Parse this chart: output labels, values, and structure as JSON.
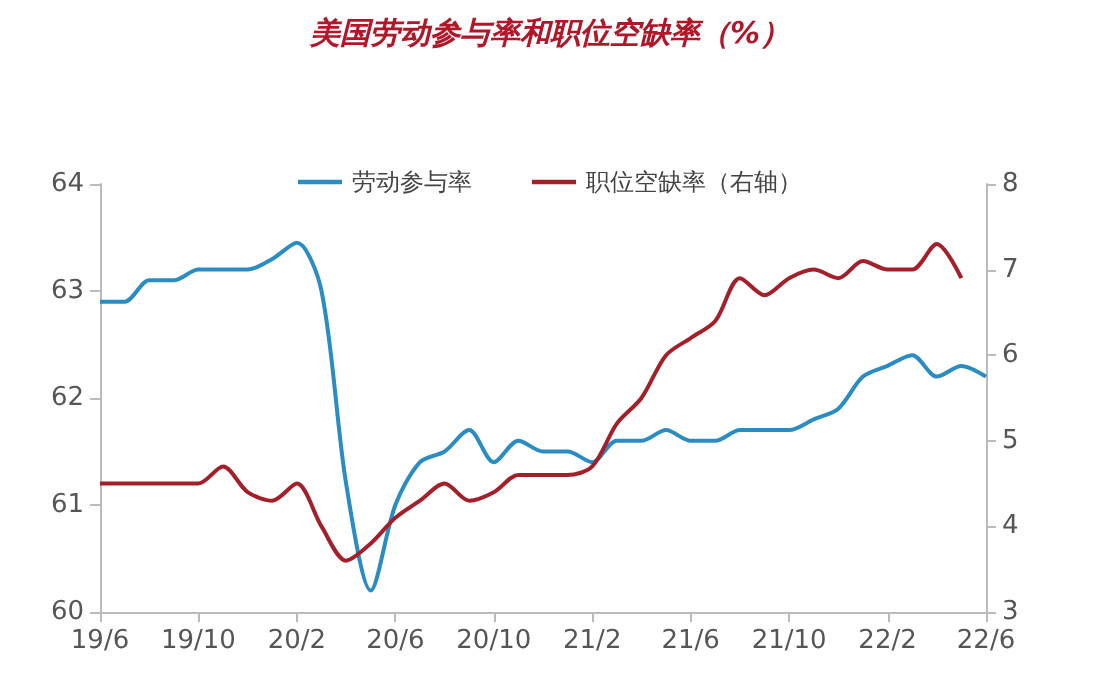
{
  "chart_data": {
    "type": "line",
    "title": "美国劳动参与率和职位空缺率（%）",
    "categories": [
      "19/6",
      null,
      null,
      null,
      "19/10",
      null,
      null,
      null,
      "20/2",
      null,
      null,
      null,
      "20/6",
      null,
      null,
      null,
      "20/10",
      null,
      null,
      null,
      "21/2",
      null,
      null,
      null,
      "21/6",
      null,
      null,
      null,
      "21/10",
      null,
      null,
      null,
      "22/2",
      null,
      null,
      null,
      "22/6"
    ],
    "series": [
      {
        "name": "劳动参与率",
        "color": "#2b8cc4",
        "values": [
          62.9,
          62.9,
          63.1,
          63.1,
          63.2,
          63.2,
          63.2,
          63.3,
          63.45,
          63.0,
          61.2,
          60.2,
          61.0,
          61.4,
          61.5,
          61.7,
          61.4,
          61.6,
          61.5,
          61.5,
          61.4,
          61.6,
          61.6,
          61.7,
          61.6,
          61.6,
          61.7,
          61.7,
          61.7,
          61.8,
          61.9,
          62.2,
          62.3,
          62.4,
          62.2,
          62.3,
          62.2
        ]
      },
      {
        "name": "职位空缺率（右轴）",
        "color": "#a3202a",
        "axis": "y2",
        "values": [
          4.5,
          4.5,
          4.5,
          4.5,
          4.5,
          4.7,
          4.4,
          4.3,
          4.5,
          4.0,
          3.6,
          3.8,
          4.1,
          4.3,
          4.5,
          4.3,
          4.4,
          4.6,
          4.6,
          4.6,
          4.7,
          5.2,
          5.5,
          6.0,
          6.2,
          6.4,
          6.9,
          6.7,
          6.9,
          7.0,
          6.9,
          7.1,
          7.0,
          7.0,
          7.3,
          6.9,
          null
        ]
      }
    ],
    "ylim": [
      60,
      64
    ],
    "yticks": [
      60,
      61,
      62,
      63,
      64
    ],
    "y2lim": [
      3,
      8
    ],
    "y2ticks": [
      3,
      4,
      5,
      6,
      7,
      8
    ],
    "legend": "top",
    "grid": false,
    "marker": "none",
    "line_style": "solid"
  }
}
